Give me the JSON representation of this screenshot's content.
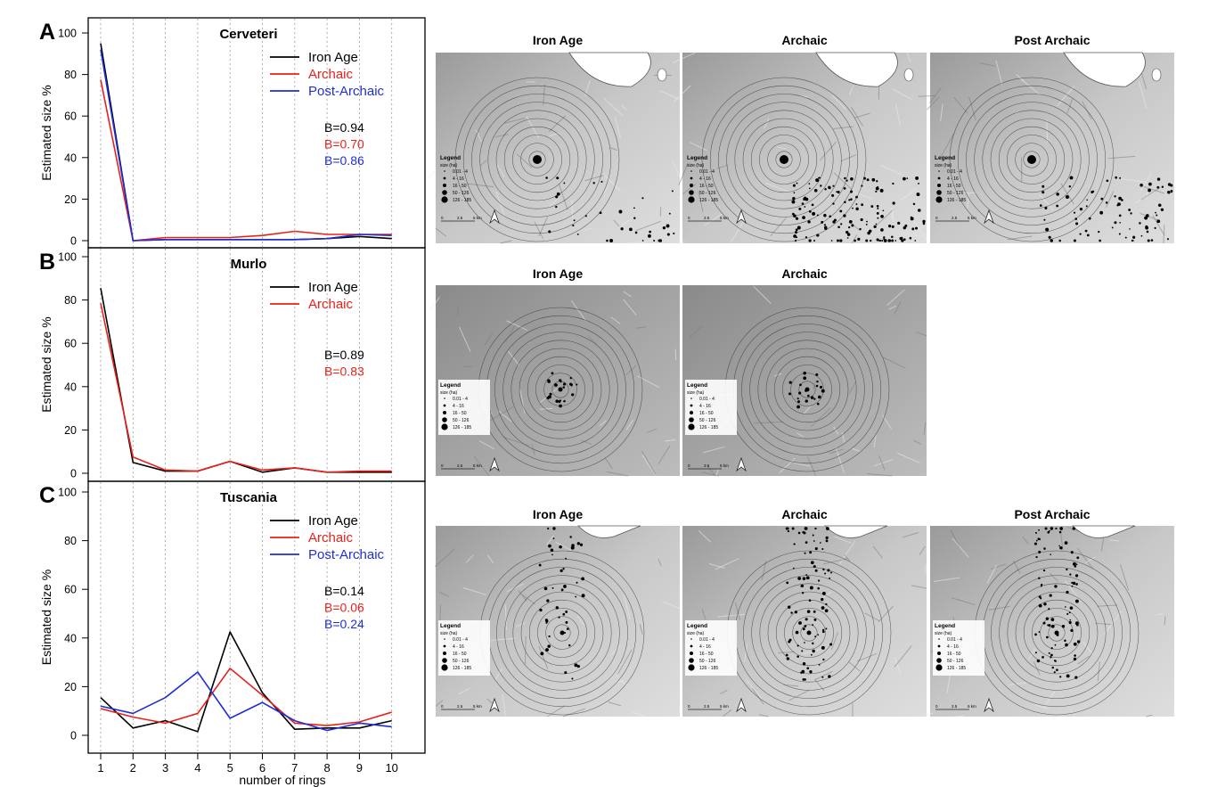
{
  "x_axis": {
    "label": "number of rings",
    "ticks": [
      "1",
      "2",
      "3",
      "4",
      "5",
      "6",
      "7",
      "8",
      "9",
      "10"
    ]
  },
  "y_axis": {
    "label": "Estimated size %",
    "ticks": [
      "0",
      "20",
      "40",
      "60",
      "80",
      "100"
    ]
  },
  "colors": {
    "iron_age": "#000000",
    "archaic": "#e8221b",
    "post_archaic": "#1f2fd6"
  },
  "chart_data": [
    {
      "type": "line",
      "panel": "A",
      "title": "Cerveteri",
      "xlabel": "",
      "ylabel": "Estimated size %",
      "ylim": [
        0,
        100
      ],
      "legend_position": "top-right",
      "categories": [
        1,
        2,
        3,
        4,
        5,
        6,
        7,
        8,
        9,
        10
      ],
      "series": [
        {
          "name": "Iron Age",
          "color": "#000000",
          "values": [
            95,
            0,
            0.5,
            0.5,
            0.5,
            0.5,
            0.5,
            1,
            2,
            1
          ]
        },
        {
          "name": "Archaic",
          "color": "#e8221b",
          "values": [
            77.5,
            0,
            1.5,
            1.5,
            1.5,
            2.5,
            4.5,
            3,
            3,
            3
          ]
        },
        {
          "name": "Post-Archaic",
          "color": "#1f2fd6",
          "values": [
            92,
            0,
            0.5,
            0.5,
            0.5,
            0.5,
            0.5,
            1,
            3,
            2.5
          ]
        }
      ],
      "annotations": [
        {
          "text": "B=0.94",
          "color": "#000000"
        },
        {
          "text": "B=0.70",
          "color": "#e8221b"
        },
        {
          "text": "B=0.86",
          "color": "#1f2fd6"
        }
      ]
    },
    {
      "type": "line",
      "panel": "B",
      "title": "Murlo",
      "xlabel": "",
      "ylabel": "Estimated size %",
      "ylim": [
        0,
        100
      ],
      "legend_position": "top-right",
      "categories": [
        1,
        2,
        3,
        4,
        5,
        6,
        7,
        8,
        9,
        10
      ],
      "series": [
        {
          "name": "Iron Age",
          "color": "#000000",
          "values": [
            85.5,
            5,
            1,
            1,
            5.5,
            0.5,
            2.5,
            0.5,
            0.5,
            0.5
          ]
        },
        {
          "name": "Archaic",
          "color": "#e8221b",
          "values": [
            78.5,
            7.5,
            1.5,
            1,
            5.5,
            1.5,
            2.5,
            0.5,
            1,
            1
          ]
        }
      ],
      "annotations": [
        {
          "text": "B=0.89",
          "color": "#000000"
        },
        {
          "text": "B=0.83",
          "color": "#e8221b"
        }
      ]
    },
    {
      "type": "line",
      "panel": "C",
      "title": "Tuscania",
      "xlabel": "number of rings",
      "ylabel": "Estimated size %",
      "ylim": [
        0,
        100
      ],
      "legend_position": "top-right",
      "categories": [
        1,
        2,
        3,
        4,
        5,
        6,
        7,
        8,
        9,
        10
      ],
      "series": [
        {
          "name": "Iron Age",
          "color": "#000000",
          "values": [
            15.5,
            3,
            6,
            1.5,
            42.5,
            17.5,
            2.5,
            3,
            3,
            6
          ]
        },
        {
          "name": "Archaic",
          "color": "#e8221b",
          "values": [
            11,
            7.5,
            5,
            9,
            27.5,
            16.5,
            5,
            4,
            5.5,
            9.5
          ]
        },
        {
          "name": "Post-Archaic",
          "color": "#1f2fd6",
          "values": [
            12,
            9,
            15.5,
            26,
            7,
            13.5,
            6,
            2,
            5,
            3.5
          ]
        }
      ],
      "annotations": [
        {
          "text": "B=0.14",
          "color": "#000000"
        },
        {
          "text": "B=0.06",
          "color": "#e8221b"
        },
        {
          "text": "B=0.24",
          "color": "#1f2fd6"
        }
      ]
    }
  ],
  "maps": {
    "rows": [
      {
        "titles": [
          "Iron Age",
          "Archaic",
          "Post Archaic"
        ]
      },
      {
        "titles": [
          "Iron Age",
          "Archaic"
        ]
      },
      {
        "titles": [
          "Iron Age",
          "Archaic",
          "Post Archaic"
        ]
      }
    ],
    "legend": {
      "title": "Legend",
      "subtitle": "size (ha)",
      "items": [
        "0.01 - 4",
        "4 - 16",
        "16 - 50",
        "50 - 126",
        "126 - 185"
      ],
      "scale": [
        "0",
        "2.5",
        "5 km"
      ]
    }
  }
}
